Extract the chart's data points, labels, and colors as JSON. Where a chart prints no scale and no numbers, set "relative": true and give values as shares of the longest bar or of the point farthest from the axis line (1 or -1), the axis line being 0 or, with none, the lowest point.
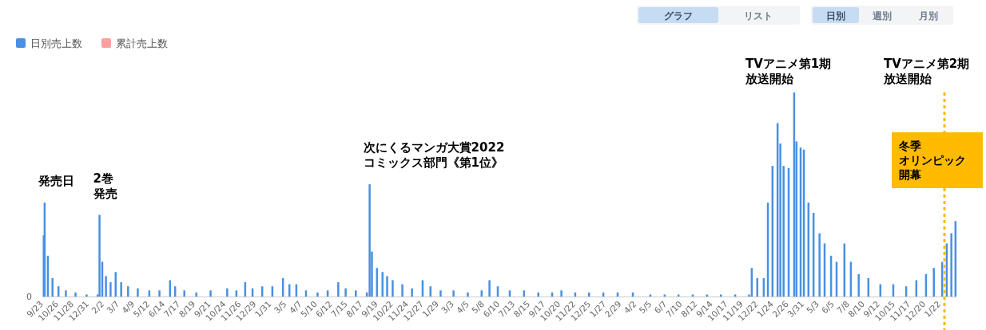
{
  "chart_data": {
    "type": "bar",
    "relative": true,
    "legend": "top left",
    "marker": "none",
    "xlim": [
      "2020-09-20",
      "2026-02-24"
    ],
    "xticks": [
      {
        "value": "2020-09-23",
        "label": "9/23"
      },
      {
        "value": "2020-10-26",
        "label": "10/26"
      },
      {
        "value": "2020-11-28",
        "label": "11/28"
      },
      {
        "value": "2020-12-31",
        "label": "12/31"
      },
      {
        "value": "2021-02-02",
        "label": "2/2"
      },
      {
        "value": "2021-03-07",
        "label": "3/7"
      },
      {
        "value": "2021-04-09",
        "label": "4/9"
      },
      {
        "value": "2021-05-12",
        "label": "5/12"
      },
      {
        "value": "2021-06-14",
        "label": "6/14"
      },
      {
        "value": "2021-07-17",
        "label": "7/17"
      },
      {
        "value": "2021-08-19",
        "label": "8/19"
      },
      {
        "value": "2021-09-21",
        "label": "9/21"
      },
      {
        "value": "2021-10-24",
        "label": "10/24"
      },
      {
        "value": "2021-11-26",
        "label": "11/26"
      },
      {
        "value": "2021-12-29",
        "label": "12/29"
      },
      {
        "value": "2022-01-31",
        "label": "1/31"
      },
      {
        "value": "2022-03-05",
        "label": "3/5"
      },
      {
        "value": "2022-04-07",
        "label": "4/7"
      },
      {
        "value": "2022-05-10",
        "label": "5/10"
      },
      {
        "value": "2022-06-12",
        "label": "6/12"
      },
      {
        "value": "2022-07-15",
        "label": "7/15"
      },
      {
        "value": "2022-08-17",
        "label": "8/17"
      },
      {
        "value": "2022-09-19",
        "label": "9/19"
      },
      {
        "value": "2022-10-22",
        "label": "10/22"
      },
      {
        "value": "2022-11-24",
        "label": "11/24"
      },
      {
        "value": "2022-12-27",
        "label": "12/27"
      },
      {
        "value": "2023-01-29",
        "label": "1/29"
      },
      {
        "value": "2023-03-03",
        "label": "3/3"
      },
      {
        "value": "2023-04-05",
        "label": "4/5"
      },
      {
        "value": "2023-05-08",
        "label": "5/8"
      },
      {
        "value": "2023-06-10",
        "label": "6/10"
      },
      {
        "value": "2023-07-13",
        "label": "7/13"
      },
      {
        "value": "2023-08-15",
        "label": "8/15"
      },
      {
        "value": "2023-09-17",
        "label": "9/17"
      },
      {
        "value": "2023-10-20",
        "label": "10/20"
      },
      {
        "value": "2023-11-22",
        "label": "11/22"
      },
      {
        "value": "2023-12-25",
        "label": "12/25"
      },
      {
        "value": "2024-01-27",
        "label": "1/27"
      },
      {
        "value": "2024-02-29",
        "label": "2/29"
      },
      {
        "value": "2024-04-02",
        "label": "4/2"
      },
      {
        "value": "2024-05-05",
        "label": "5/5"
      },
      {
        "value": "2024-06-07",
        "label": "6/7"
      },
      {
        "value": "2024-07-10",
        "label": "7/10"
      },
      {
        "value": "2024-08-12",
        "label": "8/12"
      },
      {
        "value": "2024-09-14",
        "label": "9/14"
      },
      {
        "value": "2024-10-17",
        "label": "10/17"
      },
      {
        "value": "2024-11-19",
        "label": "11/19"
      },
      {
        "value": "2024-12-22",
        "label": "12/22"
      },
      {
        "value": "2025-01-24",
        "label": "1/24"
      },
      {
        "value": "2025-02-26",
        "label": "2/26"
      },
      {
        "value": "2025-03-31",
        "label": "3/31"
      },
      {
        "value": "2025-05-03",
        "label": "5/3"
      },
      {
        "value": "2025-06-05",
        "label": "6/5"
      },
      {
        "value": "2025-07-08",
        "label": "7/8"
      },
      {
        "value": "2025-08-10",
        "label": "8/10"
      },
      {
        "value": "2025-09-12",
        "label": "9/12"
      },
      {
        "value": "2025-10-15",
        "label": "10/15"
      },
      {
        "value": "2025-11-17",
        "label": "11/17"
      },
      {
        "value": "2025-12-20",
        "label": "12/20"
      },
      {
        "value": "2026-01-22",
        "label": "1/22"
      }
    ],
    "series": [
      {
        "name": "日別売上数",
        "color": "#4a90e2",
        "x": [
          "2020-09-23",
          "2020-09-25",
          "2020-10-02",
          "2020-10-12",
          "2020-10-25",
          "2020-11-10",
          "2020-12-01",
          "2020-12-25",
          "2021-01-18",
          "2021-01-22",
          "2021-01-28",
          "2021-02-05",
          "2021-02-15",
          "2021-02-26",
          "2021-03-10",
          "2021-03-25",
          "2021-04-15",
          "2021-05-10",
          "2021-06-01",
          "2021-06-24",
          "2021-07-05",
          "2021-07-25",
          "2021-08-20",
          "2021-09-20",
          "2021-10-26",
          "2021-11-15",
          "2021-12-04",
          "2021-12-20",
          "2022-01-10",
          "2022-02-01",
          "2022-02-24",
          "2022-03-10",
          "2022-03-25",
          "2022-04-15",
          "2022-05-10",
          "2022-06-01",
          "2022-06-24",
          "2022-07-10",
          "2022-08-01",
          "2022-08-25",
          "2022-08-31",
          "2022-09-05",
          "2022-09-16",
          "2022-09-28",
          "2022-10-08",
          "2022-10-20",
          "2022-11-10",
          "2022-12-01",
          "2022-12-24",
          "2023-01-10",
          "2023-02-01",
          "2023-03-01",
          "2023-04-01",
          "2023-05-01",
          "2023-05-18",
          "2023-06-05",
          "2023-07-01",
          "2023-08-01",
          "2023-09-01",
          "2023-10-01",
          "2023-10-21",
          "2023-11-20",
          "2023-12-20",
          "2024-01-20",
          "2024-02-20",
          "2024-03-24",
          "2024-05-01",
          "2024-06-01",
          "2024-07-01",
          "2024-08-01",
          "2024-09-01",
          "2024-10-01",
          "2024-11-01",
          "2024-12-01",
          "2024-12-07",
          "2024-12-19",
          "2025-01-02",
          "2025-01-11",
          "2025-01-21",
          "2025-02-01",
          "2025-02-07",
          "2025-02-14",
          "2025-02-25",
          "2025-03-09",
          "2025-03-14",
          "2025-03-23",
          "2025-03-30",
          "2025-04-09",
          "2025-04-20",
          "2025-05-03",
          "2025-05-14",
          "2025-05-28",
          "2025-06-09",
          "2025-06-26",
          "2025-07-10",
          "2025-07-27",
          "2025-08-17",
          "2025-09-12",
          "2025-10-10",
          "2025-11-07",
          "2025-11-29",
          "2025-12-20",
          "2026-01-06",
          "2026-01-24",
          "2026-02-03",
          "2026-02-13",
          "2026-02-22"
        ],
        "values": [
          0.3,
          0.46,
          0.2,
          0.09,
          0.05,
          0.03,
          0.02,
          0.01,
          0.01,
          0.4,
          0.17,
          0.1,
          0.07,
          0.12,
          0.07,
          0.05,
          0.04,
          0.03,
          0.03,
          0.08,
          0.05,
          0.03,
          0.02,
          0.03,
          0.04,
          0.03,
          0.07,
          0.04,
          0.05,
          0.05,
          0.09,
          0.06,
          0.06,
          0.03,
          0.02,
          0.03,
          0.07,
          0.04,
          0.03,
          0.02,
          0.55,
          0.22,
          0.14,
          0.12,
          0.1,
          0.08,
          0.06,
          0.04,
          0.08,
          0.05,
          0.03,
          0.03,
          0.02,
          0.03,
          0.08,
          0.05,
          0.03,
          0.03,
          0.02,
          0.02,
          0.03,
          0.02,
          0.02,
          0.02,
          0.02,
          0.02,
          0.01,
          0.01,
          0.01,
          0.01,
          0.01,
          0.01,
          0.01,
          0.01,
          0.14,
          0.09,
          0.09,
          0.46,
          0.64,
          0.85,
          0.75,
          0.64,
          0.63,
          1.0,
          0.76,
          0.73,
          0.72,
          0.46,
          0.41,
          0.31,
          0.26,
          0.2,
          0.17,
          0.26,
          0.17,
          0.11,
          0.09,
          0.06,
          0.06,
          0.05,
          0.08,
          0.11,
          0.14,
          0.17,
          0.26,
          0.31,
          0.37
        ]
      },
      {
        "name": "累計売上数",
        "color": "#ff9f9f"
      }
    ],
    "ref_lines": [
      {
        "axis": "x",
        "value": "2026-01-29",
        "label": "冬季オリンピック開幕",
        "color": "#ffbb00",
        "line_style": "dotted"
      }
    ],
    "annotations": [
      {
        "text": "発売日",
        "x": "2020-09-25",
        "y": 0.46
      },
      {
        "text": "2巻発売",
        "x": "2021-01-22",
        "y": 0.4
      },
      {
        "text": "次にくるマンガ大賞2022コミックス部門《第1位》",
        "x": "2022-08-31",
        "y": 0.55
      },
      "TVアニメ第1期放送開始",
      "TVアニメ第2期放送開始",
      "0",
      "グラフ",
      "リスト",
      "日別",
      "週別",
      "月別"
    ]
  }
}
